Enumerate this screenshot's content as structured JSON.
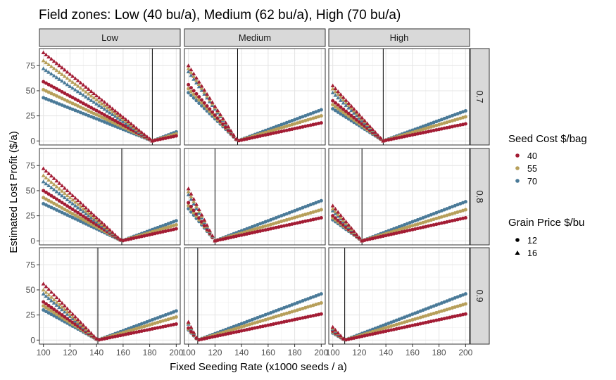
{
  "chart_data": {
    "type": "scatter",
    "title": "Field zones: Low (40 bu/a), Medium (62 bu/a), High (70 bu/a)",
    "xlabel": "Fixed Seeding Rate (x1000 seeds / a)",
    "ylabel": "Estimated Lost Profit ($/a)",
    "xlim": [
      97,
      203
    ],
    "ylim": [
      -4,
      92
    ],
    "x_ticks": [
      100,
      120,
      140,
      160,
      180,
      200
    ],
    "y_ticks": [
      0,
      25,
      50,
      75
    ],
    "x_seq": {
      "start": 100,
      "end": 200,
      "step": 2
    },
    "grid": true,
    "columns": [
      {
        "id": "low",
        "label": "Low",
        "yield": 40
      },
      {
        "id": "medium",
        "label": "Medium",
        "yield": 62
      },
      {
        "id": "high",
        "label": "High",
        "yield": 70
      }
    ],
    "rows": [
      {
        "id": "0.7",
        "label": "0.7"
      },
      {
        "id": "0.8",
        "label": "0.8"
      },
      {
        "id": "0.9",
        "label": "0.9"
      }
    ],
    "seed_costs": [
      {
        "label": "40",
        "value": 40,
        "color": "#a31c34"
      },
      {
        "label": "55",
        "value": 55,
        "color": "#b79f5a"
      },
      {
        "label": "70",
        "value": 70,
        "color": "#4a7a98"
      }
    ],
    "grain_prices": [
      {
        "label": "12",
        "value": 12,
        "shape": "circle"
      },
      {
        "label": "16",
        "value": 16,
        "shape": "triangle"
      }
    ],
    "legend": {
      "position": "right",
      "seed_cost_title": "Seed Cost $/bag",
      "grain_price_title": "Grain Price $/bu"
    },
    "panels": [
      {
        "row": "0.7",
        "col": "low",
        "optimum": 182,
        "y_at_100": {
          "40_12": 59,
          "40_16": 88,
          "55_12": 51,
          "55_16": 80,
          "70_12": 43,
          "70_16": 72
        },
        "y_at_200": {
          "40": 5,
          "55": 7,
          "70": 9
        }
      },
      {
        "row": "0.7",
        "col": "medium",
        "optimum": 137,
        "y_at_100": {
          "40_12": 56,
          "40_16": 75,
          "55_12": 52,
          "55_16": 72,
          "70_12": 48,
          "70_16": 69
        },
        "y_at_200": {
          "40": 18,
          "55": 25,
          "70": 31
        }
      },
      {
        "row": "0.7",
        "col": "high",
        "optimum": 138,
        "y_at_100": {
          "40_12": 40,
          "40_16": 55,
          "55_12": 36,
          "55_16": 52,
          "70_12": 32,
          "70_16": 48
        },
        "y_at_200": {
          "40": 17,
          "55": 24,
          "70": 30
        }
      },
      {
        "row": "0.8",
        "col": "low",
        "optimum": 159,
        "y_at_100": {
          "40_12": 50,
          "40_16": 72,
          "55_12": 43,
          "55_16": 65,
          "70_12": 37,
          "70_16": 59
        },
        "y_at_200": {
          "40": 12,
          "55": 16,
          "70": 20
        }
      },
      {
        "row": "0.8",
        "col": "medium",
        "optimum": 120,
        "y_at_100": {
          "40_12": 38,
          "40_16": 52,
          "55_12": 35,
          "55_16": 49,
          "70_12": 32,
          "70_16": 46
        },
        "y_at_200": {
          "40": 23,
          "55": 31,
          "70": 40
        }
      },
      {
        "row": "0.8",
        "col": "high",
        "optimum": 122,
        "y_at_100": {
          "40_12": 25,
          "40_16": 35,
          "55_12": 23,
          "55_16": 32,
          "70_12": 21,
          "70_16": 30
        },
        "y_at_200": {
          "40": 23,
          "55": 31,
          "70": 39
        }
      },
      {
        "row": "0.9",
        "col": "low",
        "optimum": 141,
        "y_at_100": {
          "40_12": 38,
          "40_16": 56,
          "55_12": 34,
          "55_16": 50,
          "70_12": 30,
          "70_16": 46
        },
        "y_at_200": {
          "40": 16,
          "55": 23,
          "70": 29
        }
      },
      {
        "row": "0.9",
        "col": "medium",
        "optimum": 107,
        "y_at_100": {
          "40_12": 12,
          "40_16": 18,
          "55_12": 11,
          "55_16": 17,
          "70_12": 10,
          "70_16": 16
        },
        "y_at_200": {
          "40": 26,
          "55": 37,
          "70": 46
        }
      },
      {
        "row": "0.9",
        "col": "high",
        "optimum": 109,
        "y_at_100": {
          "40_12": 9,
          "40_16": 13,
          "55_12": 8,
          "55_16": 12,
          "70_12": 7,
          "70_16": 11
        },
        "y_at_200": {
          "40": 26,
          "55": 36,
          "70": 46
        }
      }
    ]
  }
}
